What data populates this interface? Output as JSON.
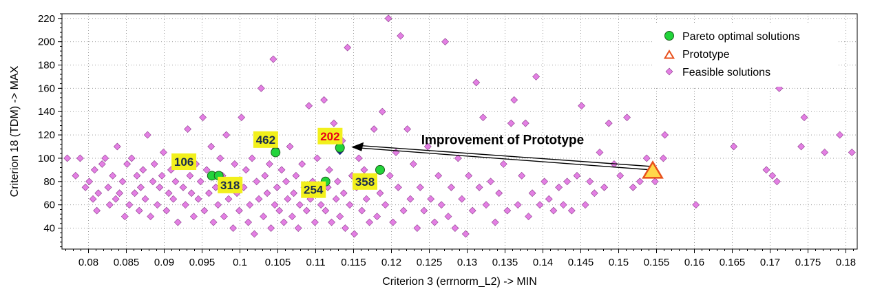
{
  "chart_data": {
    "type": "scatter",
    "xlabel": "Criterion 3 (errnorm_L2) -> MIN",
    "ylabel": "Criterion 18 (TDM) -> MAX",
    "xlim": [
      0.0765,
      0.1815
    ],
    "ylim": [
      22,
      224
    ],
    "xticks": [
      0.08,
      0.085,
      0.09,
      0.095,
      0.1,
      0.105,
      0.11,
      0.115,
      0.12,
      0.125,
      0.13,
      0.135,
      0.14,
      0.145,
      0.15,
      0.155,
      0.16,
      0.165,
      0.17,
      0.175,
      0.18
    ],
    "xtick_labels": [
      "0.08",
      "0.085",
      "0.09",
      "0.095",
      "0.1",
      "0.105",
      "0.11",
      "0.115",
      "0.12",
      "0.125",
      "0.13",
      "0.135",
      "0.14",
      "0.145",
      "0.15",
      "0.155",
      "0.16",
      "0.165",
      "0.17",
      "0.175",
      "0.18"
    ],
    "yticks": [
      40,
      60,
      80,
      100,
      120,
      140,
      160,
      180,
      200,
      220
    ],
    "ytick_labels": [
      "40",
      "60",
      "80",
      "100",
      "120",
      "140",
      "160",
      "180",
      "200",
      "220"
    ],
    "grid": true,
    "legend": {
      "position": "top-right",
      "entries": [
        "Pareto optimal solutions",
        "Prototype",
        "Feasible solutions"
      ]
    },
    "colors": {
      "feasible": "#e37fe3",
      "pareto": "#22d43a",
      "prototype_fill": "#ffd84a",
      "prototype_edge": "#e8501c",
      "label_bg": "#f2f01c",
      "label_dark": "#1a2b4c",
      "label_red": "#e8001a"
    },
    "series": [
      {
        "name": "Pareto optimal solutions",
        "marker": "circle",
        "points": [
          [
            0.0963,
            85
          ],
          [
            0.0972,
            85
          ],
          [
            0.1047,
            105
          ],
          [
            0.1113,
            80
          ],
          [
            0.1132,
            109
          ],
          [
            0.1185,
            90
          ]
        ]
      },
      {
        "name": "Prototype",
        "marker": "triangle",
        "points": [
          [
            0.1545,
            89
          ]
        ]
      },
      {
        "name": "Feasible solutions",
        "marker": "diamond",
        "points": [
          [
            0.0772,
            100
          ],
          [
            0.0783,
            85
          ],
          [
            0.0789,
            100
          ],
          [
            0.0796,
            75
          ],
          [
            0.0801,
            80
          ],
          [
            0.0806,
            65
          ],
          [
            0.0808,
            90
          ],
          [
            0.0811,
            55
          ],
          [
            0.0813,
            70
          ],
          [
            0.0818,
            95
          ],
          [
            0.0822,
            100
          ],
          [
            0.0826,
            75
          ],
          [
            0.0828,
            60
          ],
          [
            0.0832,
            85
          ],
          [
            0.0836,
            65
          ],
          [
            0.0838,
            110
          ],
          [
            0.0841,
            70
          ],
          [
            0.0845,
            80
          ],
          [
            0.0848,
            50
          ],
          [
            0.0851,
            95
          ],
          [
            0.0854,
            60
          ],
          [
            0.0857,
            100
          ],
          [
            0.0861,
            70
          ],
          [
            0.0864,
            85
          ],
          [
            0.0867,
            55
          ],
          [
            0.0869,
            75
          ],
          [
            0.0872,
            90
          ],
          [
            0.0875,
            65
          ],
          [
            0.0878,
            120
          ],
          [
            0.0882,
            50
          ],
          [
            0.0885,
            80
          ],
          [
            0.0887,
            95
          ],
          [
            0.0891,
            60
          ],
          [
            0.0894,
            75
          ],
          [
            0.0897,
            85
          ],
          [
            0.0899,
            105
          ],
          [
            0.0903,
            55
          ],
          [
            0.0906,
            70
          ],
          [
            0.0909,
            90
          ],
          [
            0.0912,
            65
          ],
          [
            0.0915,
            80
          ],
          [
            0.0918,
            45
          ],
          [
            0.0921,
            100
          ],
          [
            0.0925,
            75
          ],
          [
            0.0928,
            60
          ],
          [
            0.0931,
            125
          ],
          [
            0.0934,
            85
          ],
          [
            0.0936,
            70
          ],
          [
            0.0939,
            50
          ],
          [
            0.0942,
            95
          ],
          [
            0.0945,
            65
          ],
          [
            0.0948,
            80
          ],
          [
            0.0951,
            135
          ],
          [
            0.0953,
            55
          ],
          [
            0.0956,
            90
          ],
          [
            0.0959,
            70
          ],
          [
            0.0962,
            110
          ],
          [
            0.0965,
            45
          ],
          [
            0.0968,
            75
          ],
          [
            0.0971,
            60
          ],
          [
            0.0974,
            100
          ],
          [
            0.0977,
            85
          ],
          [
            0.0979,
            50
          ],
          [
            0.0982,
            120
          ],
          [
            0.0985,
            65
          ],
          [
            0.0988,
            80
          ],
          [
            0.0991,
            40
          ],
          [
            0.0993,
            95
          ],
          [
            0.0996,
            70
          ],
          [
            0.0999,
            55
          ],
          [
            0.1002,
            135
          ],
          [
            0.1005,
            75
          ],
          [
            0.1008,
            90
          ],
          [
            0.1011,
            45
          ],
          [
            0.1013,
            60
          ],
          [
            0.1016,
            100
          ],
          [
            0.1019,
            35
          ],
          [
            0.1022,
            80
          ],
          [
            0.1025,
            65
          ],
          [
            0.1028,
            160
          ],
          [
            0.1031,
            50
          ],
          [
            0.1033,
            85
          ],
          [
            0.1036,
            70
          ],
          [
            0.1039,
            95
          ],
          [
            0.1041,
            40
          ],
          [
            0.1044,
            185
          ],
          [
            0.1046,
            60
          ],
          [
            0.1049,
            75
          ],
          [
            0.1052,
            55
          ],
          [
            0.1055,
            90
          ],
          [
            0.1058,
            45
          ],
          [
            0.1061,
            80
          ],
          [
            0.1063,
            65
          ],
          [
            0.1066,
            110
          ],
          [
            0.1069,
            50
          ],
          [
            0.1071,
            70
          ],
          [
            0.1074,
            85
          ],
          [
            0.1077,
            40
          ],
          [
            0.1079,
            60
          ],
          [
            0.1082,
            95
          ],
          [
            0.1085,
            75
          ],
          [
            0.1088,
            55
          ],
          [
            0.1091,
            145
          ],
          [
            0.1093,
            65
          ],
          [
            0.1096,
            80
          ],
          [
            0.1099,
            45
          ],
          [
            0.1102,
            100
          ],
          [
            0.1105,
            70
          ],
          [
            0.1107,
            60
          ],
          [
            0.1111,
            150
          ],
          [
            0.1113,
            55
          ],
          [
            0.1116,
            75
          ],
          [
            0.1118,
            90
          ],
          [
            0.1121,
            45
          ],
          [
            0.1124,
            130
          ],
          [
            0.1127,
            65
          ],
          [
            0.1129,
            80
          ],
          [
            0.1132,
            50
          ],
          [
            0.1135,
            115
          ],
          [
            0.1137,
            70
          ],
          [
            0.1139,
            40
          ],
          [
            0.1142,
            195
          ],
          [
            0.1145,
            60
          ],
          [
            0.1148,
            85
          ],
          [
            0.1151,
            35
          ],
          [
            0.1154,
            75
          ],
          [
            0.1157,
            100
          ],
          [
            0.1161,
            55
          ],
          [
            0.1164,
            90
          ],
          [
            0.1167,
            65
          ],
          [
            0.1171,
            45
          ],
          [
            0.1174,
            80
          ],
          [
            0.1177,
            125
          ],
          [
            0.1181,
            50
          ],
          [
            0.1185,
            70
          ],
          [
            0.1188,
            140
          ],
          [
            0.1192,
            60
          ],
          [
            0.1196,
            220
          ],
          [
            0.1198,
            85
          ],
          [
            0.1202,
            45
          ],
          [
            0.1206,
            105
          ],
          [
            0.1209,
            75
          ],
          [
            0.1212,
            205
          ],
          [
            0.1216,
            55
          ],
          [
            0.1221,
            125
          ],
          [
            0.1225,
            65
          ],
          [
            0.1229,
            95
          ],
          [
            0.1234,
            40
          ],
          [
            0.1238,
            75
          ],
          [
            0.1243,
            55
          ],
          [
            0.1248,
            110
          ],
          [
            0.1252,
            65
          ],
          [
            0.1257,
            45
          ],
          [
            0.1262,
            85
          ],
          [
            0.1266,
            60
          ],
          [
            0.1271,
            200
          ],
          [
            0.1275,
            50
          ],
          [
            0.1279,
            75
          ],
          [
            0.1284,
            40
          ],
          [
            0.1288,
            100
          ],
          [
            0.1293,
            65
          ],
          [
            0.1298,
            35
          ],
          [
            0.1302,
            85
          ],
          [
            0.1307,
            55
          ],
          [
            0.1312,
            165
          ],
          [
            0.1316,
            75
          ],
          [
            0.1321,
            135
          ],
          [
            0.1325,
            60
          ],
          [
            0.1331,
            80
          ],
          [
            0.1337,
            45
          ],
          [
            0.1342,
            70
          ],
          [
            0.1348,
            95
          ],
          [
            0.1353,
            55
          ],
          [
            0.1358,
            130
          ],
          [
            0.1362,
            150
          ],
          [
            0.1367,
            60
          ],
          [
            0.1372,
            85
          ],
          [
            0.1377,
            130
          ],
          [
            0.1381,
            50
          ],
          [
            0.1386,
            70
          ],
          [
            0.1391,
            170
          ],
          [
            0.1396,
            60
          ],
          [
            0.1402,
            80
          ],
          [
            0.1408,
            65
          ],
          [
            0.1414,
            55
          ],
          [
            0.1421,
            75
          ],
          [
            0.1427,
            60
          ],
          [
            0.1432,
            80
          ],
          [
            0.1438,
            55
          ],
          [
            0.1445,
            85
          ],
          [
            0.1451,
            145
          ],
          [
            0.1456,
            60
          ],
          [
            0.1462,
            80
          ],
          [
            0.1468,
            70
          ],
          [
            0.1475,
            105
          ],
          [
            0.1481,
            75
          ],
          [
            0.1487,
            130
          ],
          [
            0.1494,
            95
          ],
          [
            0.1502,
            85
          ],
          [
            0.1511,
            135
          ],
          [
            0.1519,
            75
          ],
          [
            0.1528,
            80
          ],
          [
            0.1537,
            100
          ],
          [
            0.1548,
            80
          ],
          [
            0.1559,
            100
          ],
          [
            0.1561,
            120
          ],
          [
            0.1602,
            60
          ],
          [
            0.1652,
            110
          ],
          [
            0.1695,
            90
          ],
          [
            0.1703,
            85
          ],
          [
            0.1709,
            80
          ],
          [
            0.1712,
            160
          ],
          [
            0.1741,
            110
          ],
          [
            0.1745,
            135
          ],
          [
            0.1772,
            105
          ],
          [
            0.1792,
            120
          ],
          [
            0.1808,
            105
          ]
        ]
      }
    ],
    "annotations": [
      {
        "text": "106",
        "x": 0.0926,
        "y": 97,
        "style": "dark"
      },
      {
        "text": "318",
        "x": 0.0987,
        "y": 77,
        "style": "dark"
      },
      {
        "text": "462",
        "x": 0.1034,
        "y": 116,
        "style": "dark"
      },
      {
        "text": "202",
        "x": 0.1119,
        "y": 119,
        "style": "red"
      },
      {
        "text": "254",
        "x": 0.1097,
        "y": 73,
        "style": "dark"
      },
      {
        "text": "358",
        "x": 0.1165,
        "y": 80,
        "style": "dark"
      }
    ],
    "arrow": {
      "text": "Improvement of Prototype",
      "from": [
        0.1543,
        90
      ],
      "to": [
        0.1147,
        109
      ]
    }
  }
}
